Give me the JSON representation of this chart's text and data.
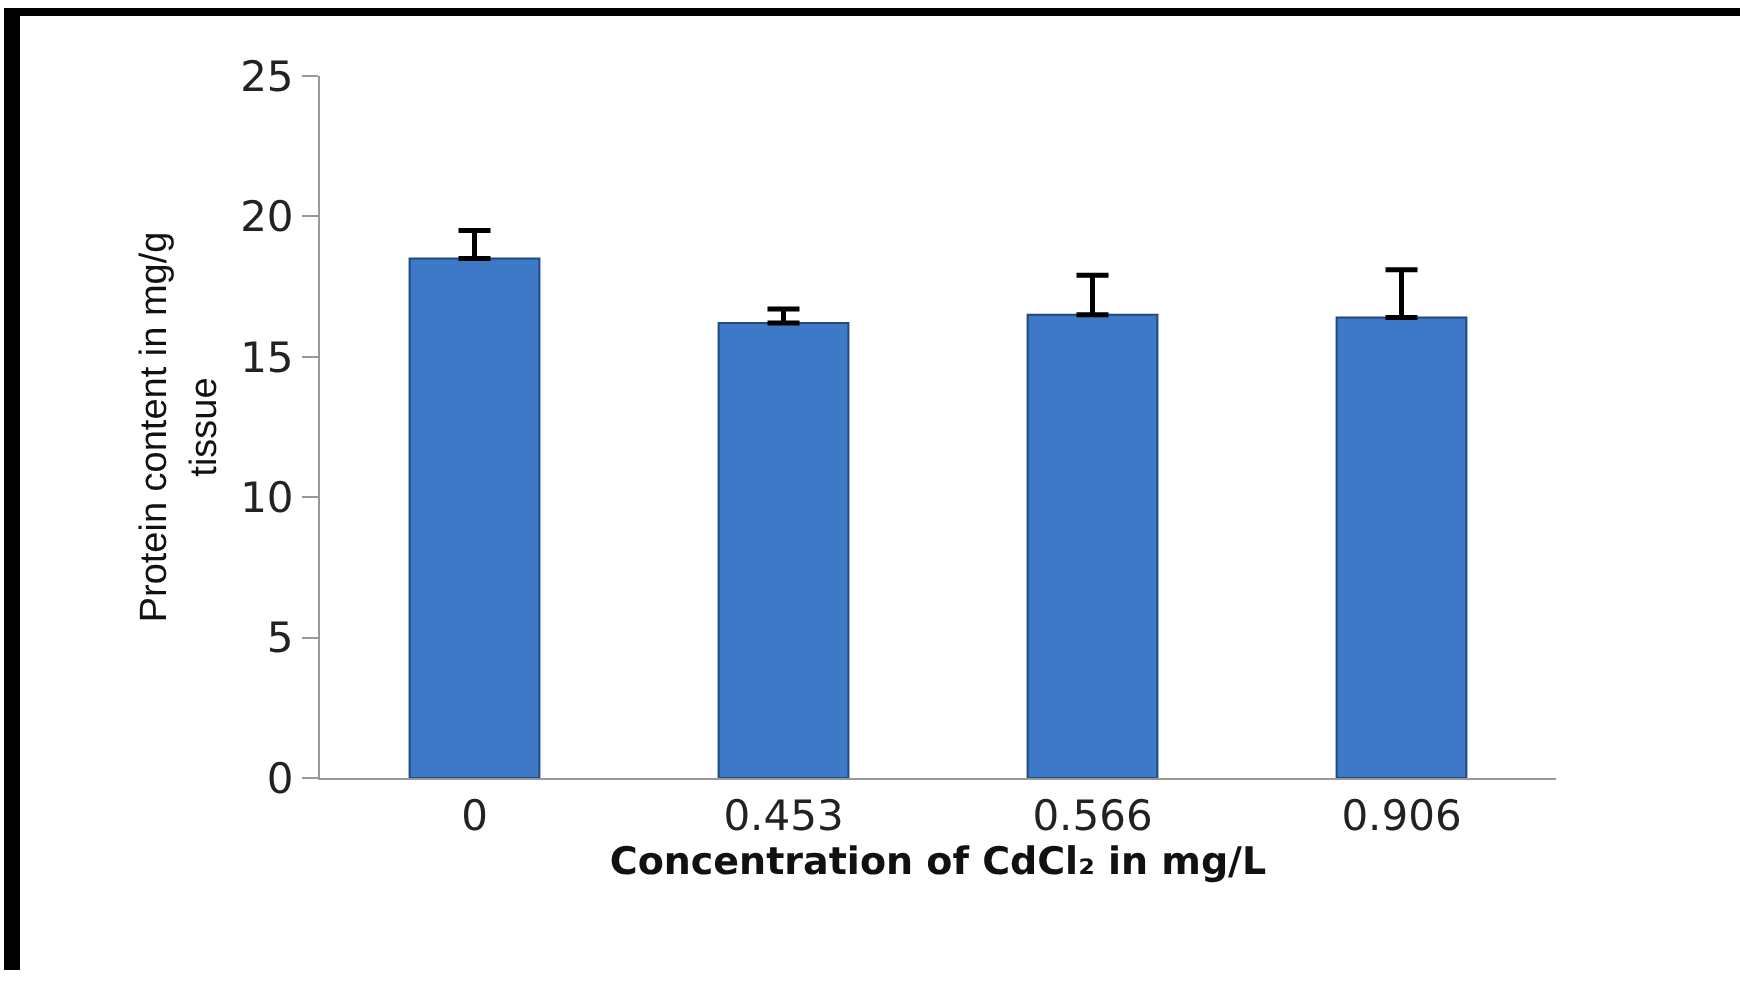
{
  "chart_data": {
    "type": "bar",
    "xlabel": "Concentration of CdCl₂ in mg/L",
    "ylabel": "Protein content in mg/g\ntissue",
    "categories": [
      "0",
      "0.453",
      "0.566",
      "0.906"
    ],
    "values": [
      18.5,
      16.2,
      16.5,
      16.4
    ],
    "errors": [
      [
        18.5,
        19.5
      ],
      [
        16.2,
        16.7
      ],
      [
        16.5,
        17.9
      ],
      [
        16.4,
        18.1
      ]
    ],
    "color": "#3d79c7",
    "ylim": [
      0,
      25
    ],
    "yticks": [
      0,
      5,
      10,
      15,
      20,
      25
    ],
    "grid": false
  }
}
